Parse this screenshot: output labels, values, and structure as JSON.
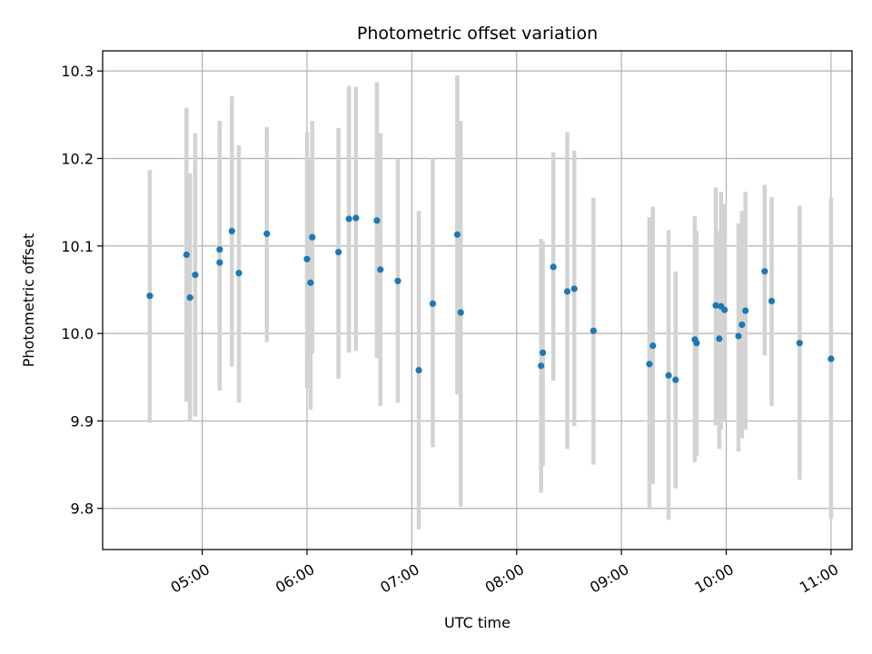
{
  "chart_data": {
    "type": "scatter",
    "title": "Photometric offset variation",
    "xlabel": "UTC time",
    "ylabel": "Photometric offset",
    "x_axis_kind": "time",
    "xlim": [
      "04:03",
      "11:12"
    ],
    "ylim": [
      9.753,
      10.323
    ],
    "xticks": [
      "05:00",
      "06:00",
      "07:00",
      "08:00",
      "09:00",
      "10:00",
      "11:00"
    ],
    "yticks": [
      "9.8",
      "9.9",
      "10.0",
      "10.1",
      "10.2",
      "10.3"
    ],
    "grid": true,
    "legend": "none",
    "colors": {
      "marker": "#1f77b4",
      "errorbar": "#d3d3d3",
      "grid": "#b0b0b0"
    },
    "series": [
      {
        "x": [
          "04:30",
          "04:51",
          "04:53",
          "04:56",
          "05:10",
          "05:10",
          "05:17",
          "05:21",
          "05:37",
          "06:00",
          "06:02",
          "06:03",
          "06:18",
          "06:24",
          "06:28",
          "06:40",
          "06:42",
          "06:52",
          "07:04",
          "07:12",
          "07:26",
          "07:28",
          "08:14",
          "08:15",
          "08:21",
          "08:29",
          "08:33",
          "08:44",
          "09:16",
          "09:18",
          "09:27",
          "09:31",
          "09:42",
          "09:43",
          "09:54",
          "09:56",
          "09:57",
          "09:59",
          "10:07",
          "10:09",
          "10:11",
          "10:22",
          "10:26",
          "10:42",
          "11:00"
        ],
        "y": [
          10.043,
          10.09,
          10.041,
          10.067,
          10.096,
          10.081,
          10.117,
          10.069,
          10.114,
          10.085,
          10.058,
          10.11,
          10.093,
          10.131,
          10.132,
          10.129,
          10.073,
          10.06,
          9.958,
          10.034,
          10.113,
          10.024,
          9.963,
          9.978,
          10.076,
          10.048,
          10.051,
          10.003,
          9.965,
          9.986,
          9.952,
          9.947,
          9.993,
          9.989,
          10.032,
          9.994,
          10.031,
          10.027,
          9.997,
          10.01,
          10.026,
          10.071,
          10.037,
          9.989,
          9.971
        ],
        "y_low": [
          9.898,
          9.922,
          9.9,
          9.905,
          9.935,
          9.935,
          9.962,
          9.921,
          9.99,
          9.938,
          9.913,
          9.977,
          9.948,
          9.978,
          9.98,
          9.972,
          9.917,
          9.921,
          9.776,
          9.87,
          9.93,
          9.802,
          9.818,
          9.848,
          9.946,
          9.868,
          9.894,
          9.85,
          9.8,
          9.828,
          9.787,
          9.823,
          9.853,
          9.86,
          9.895,
          9.868,
          9.89,
          9.9,
          9.865,
          9.88,
          9.89,
          9.975,
          9.917,
          9.833,
          9.788
        ],
        "y_high": [
          10.187,
          10.258,
          10.183,
          10.229,
          10.243,
          10.227,
          10.271,
          10.215,
          10.236,
          10.23,
          10.199,
          10.243,
          10.235,
          10.283,
          10.282,
          10.287,
          10.229,
          10.199,
          10.14,
          10.2,
          10.295,
          10.243,
          10.108,
          10.105,
          10.207,
          10.23,
          10.209,
          10.155,
          10.133,
          10.145,
          10.118,
          10.071,
          10.134,
          10.117,
          10.167,
          10.117,
          10.162,
          10.148,
          10.126,
          10.14,
          10.162,
          10.17,
          10.156,
          10.146,
          10.155
        ]
      }
    ]
  }
}
